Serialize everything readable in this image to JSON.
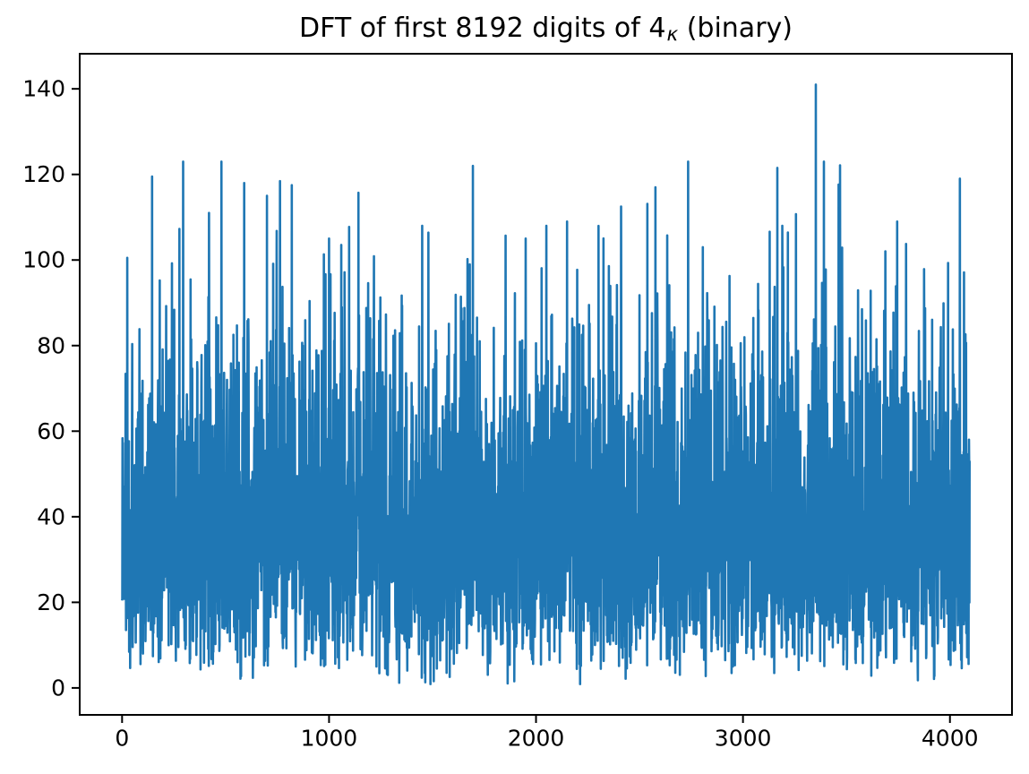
{
  "chart_data": {
    "type": "line",
    "title": "DFT of first 8192 digits of 4κ (binary)",
    "title_parts": {
      "prefix": "DFT of first 8192 digits of 4",
      "subscript": "κ",
      "suffix": " (binary)"
    },
    "xlabel": "",
    "ylabel": "",
    "xticks": [
      0,
      1000,
      2000,
      3000,
      4000
    ],
    "yticks": [
      0,
      20,
      40,
      60,
      80,
      100,
      120,
      140
    ],
    "xlim": [
      -204.75,
      4299.75
    ],
    "ylim": [
      -6.3,
      148.2
    ],
    "grid": false,
    "legend": null,
    "line_color": "#1f77b4",
    "axis_color": "#000000",
    "background_color": "#ffffff",
    "n_points": 4096,
    "x_meaning": "frequency bin index 0..4095",
    "value_stats": {
      "min": 1,
      "max": 141,
      "typical_band": [
        15,
        65
      ],
      "mean": 40
    },
    "series_model": {
      "name": "DFT magnitude",
      "distribution": "rayleigh",
      "sigma": 32,
      "seed": 1337,
      "n": 4096,
      "clip_min": 0.9,
      "clip_max": 123,
      "description": "4096 one-sided DFT magnitudes of 8192 random binary digits; i.i.d. Rayleigh(sigma=32) noise band with isolated spikes"
    },
    "notable_peaks": [
      {
        "x": 25,
        "y": 100.5
      },
      {
        "x": 145,
        "y": 119.5
      },
      {
        "x": 420,
        "y": 111.0
      },
      {
        "x": 590,
        "y": 118.0
      },
      {
        "x": 700,
        "y": 115.0
      },
      {
        "x": 820,
        "y": 117.5
      },
      {
        "x": 1000,
        "y": 105.0
      },
      {
        "x": 1450,
        "y": 108.0
      },
      {
        "x": 1695,
        "y": 122.0
      },
      {
        "x": 1950,
        "y": 105.0
      },
      {
        "x": 2050,
        "y": 108.0
      },
      {
        "x": 2150,
        "y": 109.0
      },
      {
        "x": 2411,
        "y": 112.5
      },
      {
        "x": 2577,
        "y": 117.0
      },
      {
        "x": 3190,
        "y": 108.0
      },
      {
        "x": 3352,
        "y": 141.0
      },
      {
        "x": 3745,
        "y": 109.0
      },
      {
        "x": 4048,
        "y": 119.0
      }
    ]
  }
}
